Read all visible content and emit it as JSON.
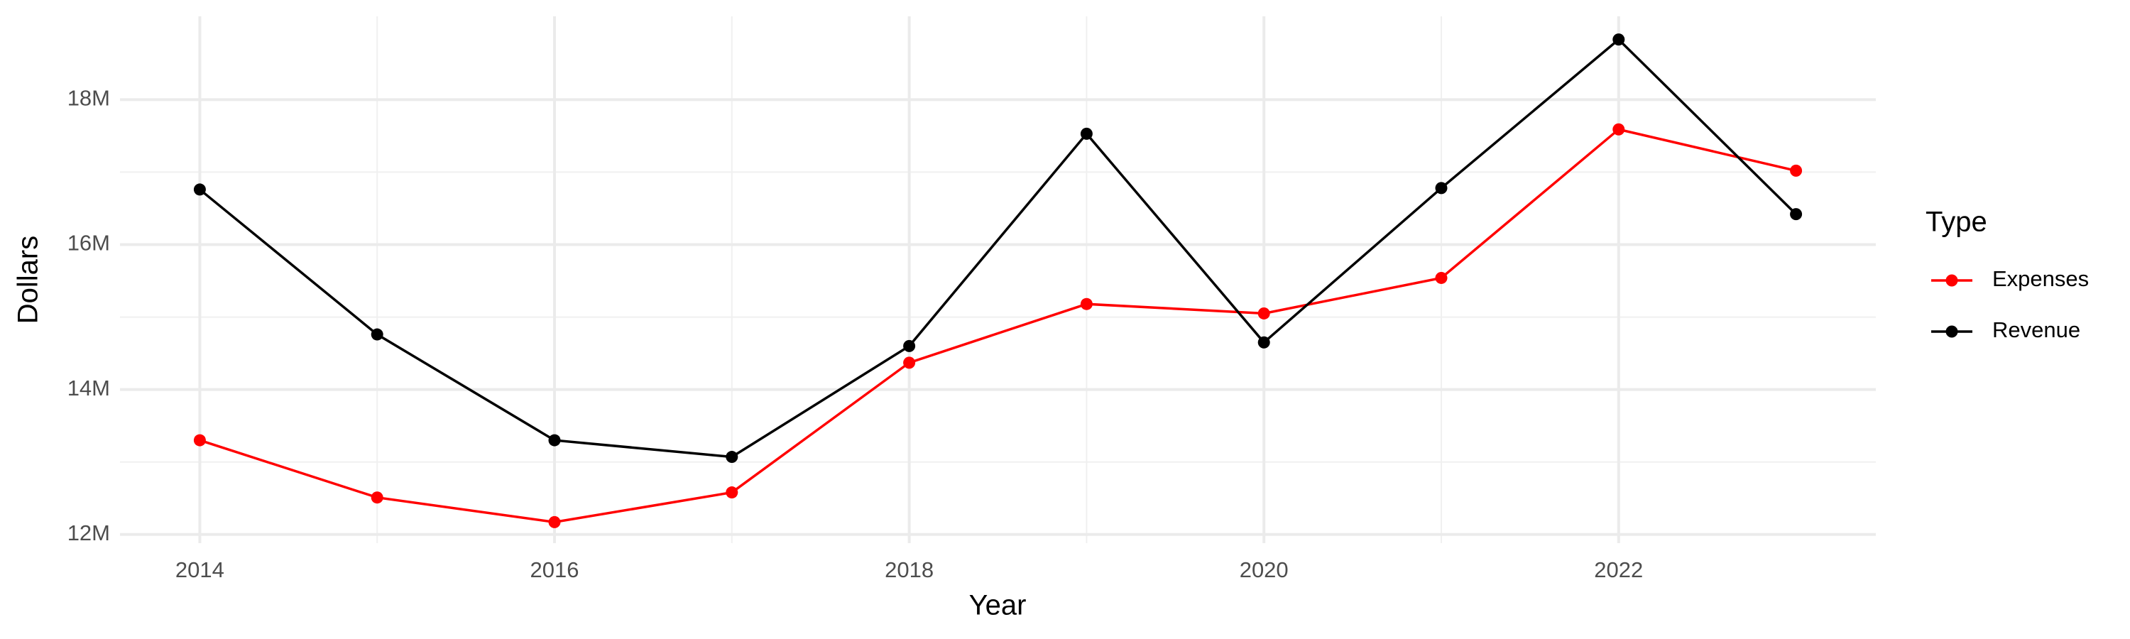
{
  "chart_data": {
    "type": "line",
    "x_label": "Year",
    "y_label": "Dollars",
    "x": [
      2014,
      2015,
      2016,
      2017,
      2018,
      2019,
      2020,
      2021,
      2022,
      2023
    ],
    "series": [
      {
        "name": "Expenses",
        "color": "#ff0000",
        "values": [
          13300000,
          12510000,
          12170000,
          12580000,
          14370000,
          15180000,
          15050000,
          15540000,
          17590000,
          17020000
        ]
      },
      {
        "name": "Revenue",
        "color": "#000000",
        "values": [
          16760000,
          14760000,
          13300000,
          13070000,
          14600000,
          17530000,
          14650000,
          16780000,
          18830000,
          16420000
        ]
      }
    ],
    "legend_title": "Type",
    "legend_position": "right",
    "xlim": [
      2013.55,
      2023.45
    ],
    "xticks": [
      2014,
      2016,
      2018,
      2020,
      2022
    ],
    "ylim": [
      11880000,
      19150000
    ],
    "yticks": [
      {
        "value": 12000000,
        "label": "12M"
      },
      {
        "value": 14000000,
        "label": "14M"
      },
      {
        "value": 16000000,
        "label": "16M"
      },
      {
        "value": 18000000,
        "label": "18M"
      }
    ],
    "grid": true
  }
}
